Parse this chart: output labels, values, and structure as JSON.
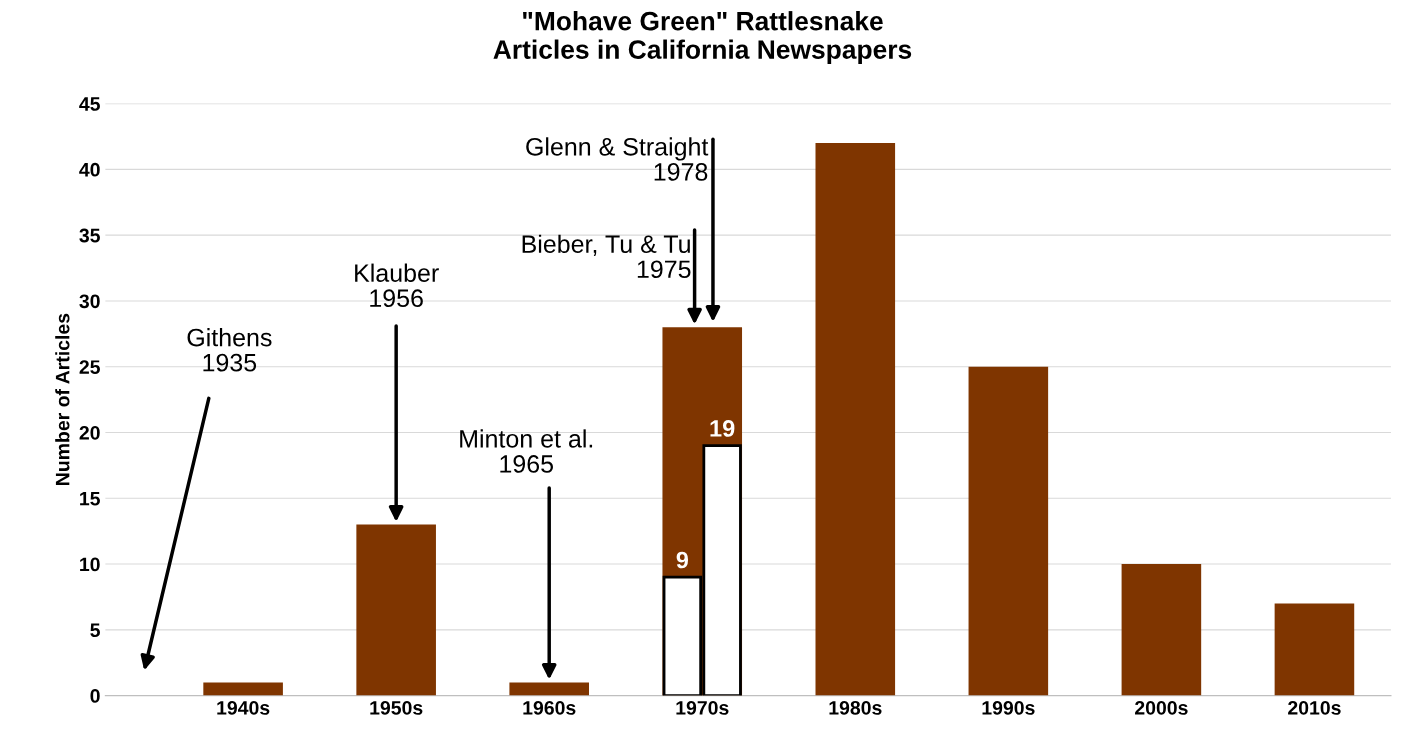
{
  "chart_data": {
    "type": "bar",
    "title": "\"Mohave Green\" Rattlesnake\nArticles in California Newspapers",
    "ylabel": "Number of Articles",
    "categories": [
      "1940s",
      "1950s",
      "1960s",
      "1970s",
      "1980s",
      "1990s",
      "2000s",
      "2010s"
    ],
    "series": [
      {
        "color": "#7f3500",
        "values": [
          1,
          13,
          1,
          28,
          42,
          25,
          10,
          7
        ]
      },
      {
        "color": "#ffffff",
        "values": [
          null,
          null,
          null,
          9,
          null,
          null,
          null,
          null
        ],
        "value_labels": [
          null,
          null,
          null,
          "9",
          null,
          null,
          null,
          null
        ]
      },
      {
        "color": "#ffffff",
        "values": [
          null,
          null,
          null,
          19,
          null,
          null,
          null,
          null
        ],
        "value_labels": [
          null,
          null,
          null,
          "19",
          null,
          null,
          null,
          null
        ]
      }
    ],
    "ylim": [
      0,
      45
    ],
    "yticks": [
      0,
      5,
      10,
      15,
      20,
      25,
      30,
      35,
      40,
      45
    ],
    "grid": "y",
    "legend": false,
    "annotations": [
      "Githens\n1935",
      {
        "text": "Klauber\n1956",
        "x": "1950s",
        "y": 13
      },
      {
        "text": "Minton et al.\n1965",
        "x": "1960s",
        "y": 1
      },
      {
        "text": "Bieber, Tu & Tu\n1975",
        "x": "1970s",
        "y": 28
      },
      "Glenn & Straight\n1978"
    ]
  }
}
